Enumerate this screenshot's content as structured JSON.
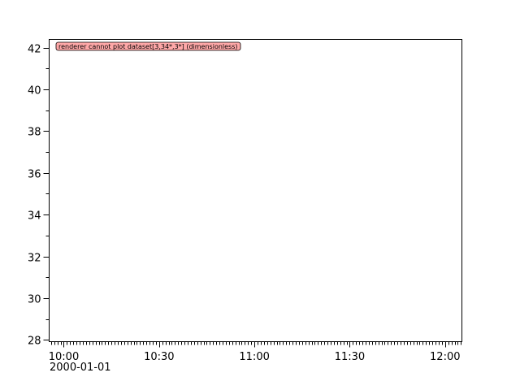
{
  "chart_data": {
    "type": "line",
    "title": "",
    "xlabel": "",
    "ylabel": "",
    "x_axis_type": "time",
    "xlim": [
      "2000-01-01T09:55:24",
      "2000-01-01T12:05:18"
    ],
    "ylim": [
      27.92,
      42.39
    ],
    "x_ticks": [
      {
        "label": "10:00",
        "minutes": 0
      },
      {
        "label": "10:30",
        "minutes": 30
      },
      {
        "label": "11:00",
        "minutes": 60
      },
      {
        "label": "11:30",
        "minutes": 90
      },
      {
        "label": "12:00",
        "minutes": 120
      }
    ],
    "x_date_label": "2000-01-01",
    "y_ticks": [
      "28",
      "30",
      "32",
      "34",
      "36",
      "38",
      "40",
      "42"
    ],
    "grid": false,
    "series": [],
    "annotation": "renderer cannot plot dataset[3,34*,3*] (dimensionless)",
    "colors": {
      "annotation_bg": "#ffa8a8",
      "axis": "#000000"
    }
  }
}
